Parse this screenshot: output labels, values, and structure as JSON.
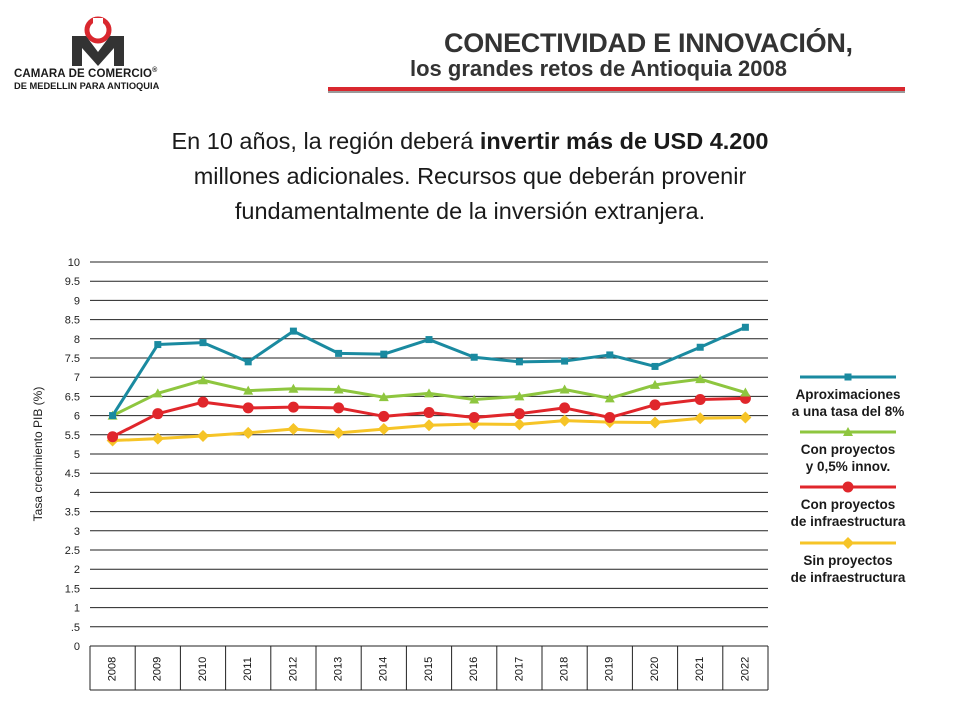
{
  "header": {
    "logo_line1": "CAMARA DE COMERCIO",
    "logo_registered": "®",
    "logo_line2": "DE MEDELLIN PARA ANTIOQUIA",
    "title": "CONECTIVIDAD E INNOVACIÓN,",
    "subtitle": "los  grandes retos de Antioquia 2008",
    "brand_red": "#d9272e",
    "brand_gray": "#9a9a9a"
  },
  "lead": {
    "line1_pre": "En 10 años, la región deberá ",
    "line1_bold": "invertir más de USD 4.200",
    "line2": "millones adicionales. Recursos que deberán provenir",
    "line3": "fundamentalmente de la inversión extranjera."
  },
  "chart_data": {
    "type": "line",
    "title": "",
    "xlabel": "",
    "ylabel": "Tasa crecimiento PIB (%)",
    "ylim": [
      0,
      10
    ],
    "y_ticks": [
      {
        "value": 0,
        "label": "0"
      },
      {
        "value": 0.5,
        "label": ".5"
      },
      {
        "value": 1,
        "label": "1"
      },
      {
        "value": 1.5,
        "label": "1.5"
      },
      {
        "value": 2,
        "label": "2"
      },
      {
        "value": 2.5,
        "label": "2.5"
      },
      {
        "value": 3,
        "label": "3"
      },
      {
        "value": 3.5,
        "label": "3.5"
      },
      {
        "value": 4,
        "label": "4"
      },
      {
        "value": 4.5,
        "label": "4.5"
      },
      {
        "value": 5,
        "label": "5"
      },
      {
        "value": 5.5,
        "label": "5.5"
      },
      {
        "value": 6,
        "label": "6"
      },
      {
        "value": 6.5,
        "label": "6.5"
      },
      {
        "value": 7,
        "label": "7"
      },
      {
        "value": 7.5,
        "label": "7.5"
      },
      {
        "value": 8,
        "label": "8"
      },
      {
        "value": 8.5,
        "label": "8.5"
      },
      {
        "value": 9,
        "label": "9"
      },
      {
        "value": 9.5,
        "label": "9.5"
      },
      {
        "value": 10,
        "label": "10"
      }
    ],
    "categories": [
      "2008",
      "2009",
      "2010",
      "2011",
      "2012",
      "2013",
      "2014",
      "2015",
      "2016",
      "2017",
      "2018",
      "2019",
      "2020",
      "2021",
      "2022"
    ],
    "grid": true,
    "legend_position": "right",
    "series": [
      {
        "name": "Aproximaciones a una tasa del 8%",
        "label_lines": [
          "Aproximaciones",
          "a una tasa del 8%"
        ],
        "color": "#1a8aa0",
        "marker": "square",
        "values": [
          6.0,
          7.85,
          7.9,
          7.4,
          8.2,
          7.62,
          7.6,
          7.98,
          7.52,
          7.4,
          7.42,
          7.58,
          7.28,
          7.78,
          8.3
        ]
      },
      {
        "name": "Con proyectos y 0,5% innov.",
        "label_lines": [
          "Con proyectos",
          "y 0,5% innov."
        ],
        "color": "#8ec63f",
        "marker": "triangle",
        "values": [
          6.0,
          6.58,
          6.92,
          6.65,
          6.7,
          6.68,
          6.48,
          6.58,
          6.42,
          6.5,
          6.68,
          6.45,
          6.8,
          6.95,
          6.6
        ]
      },
      {
        "name": "Con proyectos de infraestructura",
        "label_lines": [
          "Con proyectos",
          "de infraestructura"
        ],
        "color": "#e0262b",
        "marker": "circle",
        "values": [
          5.45,
          6.05,
          6.35,
          6.2,
          6.22,
          6.2,
          5.98,
          6.08,
          5.95,
          6.05,
          6.2,
          5.95,
          6.28,
          6.42,
          6.45
        ]
      },
      {
        "name": "Sin proyectos de infraestructura",
        "label_lines": [
          "Sin proyectos",
          "de infraestructura"
        ],
        "color": "#f6c427",
        "marker": "diamond",
        "values": [
          5.35,
          5.4,
          5.47,
          5.55,
          5.65,
          5.55,
          5.65,
          5.75,
          5.78,
          5.77,
          5.87,
          5.83,
          5.82,
          5.93,
          5.95
        ]
      }
    ]
  }
}
